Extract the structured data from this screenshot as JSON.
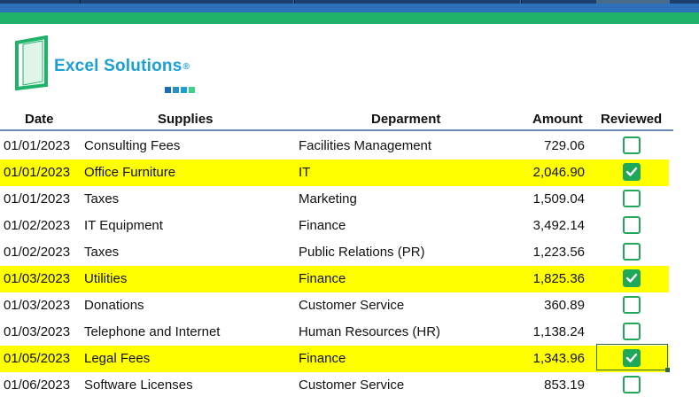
{
  "brand": {
    "name": "Excel Solutions",
    "registered": "®",
    "colors": {
      "primary": "#1aa0d4",
      "green": "#21b26a",
      "highlight": "#ffff00",
      "checkbox": "#1fa85a"
    },
    "squares": [
      "#1a6fb0",
      "#2a8fc7",
      "#1aa0d4",
      "#3fd08a"
    ]
  },
  "table": {
    "headers": {
      "date": "Date",
      "supplies": "Supplies",
      "department": "Deparment",
      "amount": "Amount",
      "reviewed": "Reviewed"
    },
    "rows": [
      {
        "date": "01/01/2023",
        "supplies": "Consulting Fees",
        "department": "Facilities Management",
        "amount": "729.06",
        "reviewed": false
      },
      {
        "date": "01/01/2023",
        "supplies": "Office Furniture",
        "department": "IT",
        "amount": "2,046.90",
        "reviewed": true
      },
      {
        "date": "01/01/2023",
        "supplies": "Taxes",
        "department": "Marketing",
        "amount": "1,509.04",
        "reviewed": false
      },
      {
        "date": "01/02/2023",
        "supplies": "IT Equipment",
        "department": "Finance",
        "amount": "3,492.14",
        "reviewed": false
      },
      {
        "date": "01/02/2023",
        "supplies": "Taxes",
        "department": "Public Relations (PR)",
        "amount": "1,223.56",
        "reviewed": false
      },
      {
        "date": "01/03/2023",
        "supplies": "Utilities",
        "department": "Finance",
        "amount": "1,825.36",
        "reviewed": true
      },
      {
        "date": "01/03/2023",
        "supplies": "Donations",
        "department": "Customer Service",
        "amount": "360.89",
        "reviewed": false
      },
      {
        "date": "01/03/2023",
        "supplies": "Telephone and Internet",
        "department": "Human Resources (HR)",
        "amount": "1,138.24",
        "reviewed": false
      },
      {
        "date": "01/05/2023",
        "supplies": "Legal Fees",
        "department": "Finance",
        "amount": "1,343.96",
        "reviewed": true
      },
      {
        "date": "01/06/2023",
        "supplies": "Software Licenses",
        "department": "Customer Service",
        "amount": "853.19",
        "reviewed": false
      }
    ]
  }
}
